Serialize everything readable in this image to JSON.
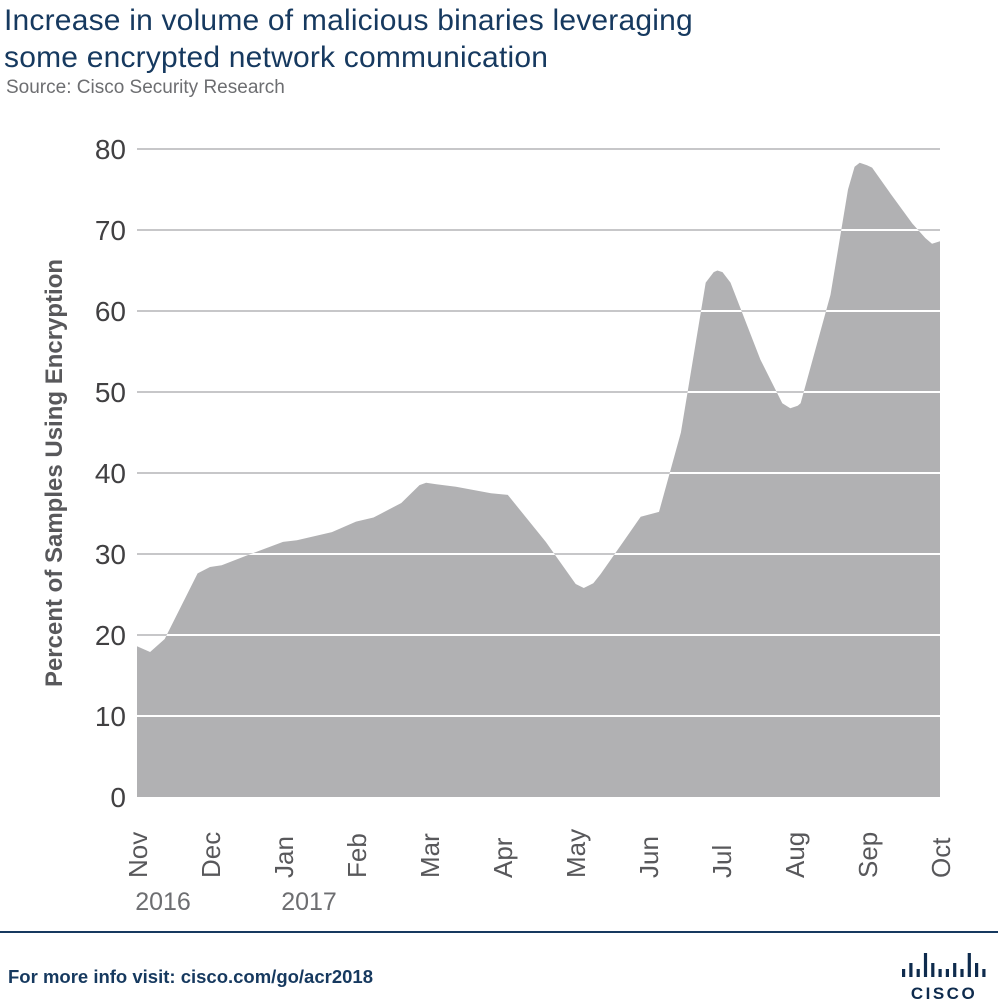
{
  "header": {
    "title_line1": "Increase in volume of malicious binaries leveraging",
    "title_line2": "some encrypted network communication",
    "source": "Source: Cisco Security Research"
  },
  "chart_data": {
    "type": "area",
    "title": "Increase in volume of malicious binaries leveraging some encrypted network communication",
    "series_name": "Percent of samples using encryption",
    "categories": [
      "Nov",
      "Dec",
      "Jan",
      "Feb",
      "Mar",
      "Apr",
      "May",
      "Jun",
      "Jul",
      "Aug",
      "Sep",
      "Oct"
    ],
    "year_markers": [
      {
        "label": "2016",
        "month_index": 0
      },
      {
        "label": "2017",
        "month_index": 2
      }
    ],
    "values": [
      18.5,
      28.5,
      31.5,
      34.5,
      39,
      37.5,
      26,
      35,
      65,
      48,
      78,
      68.5
    ],
    "detail_points": [
      [
        0.0,
        18.6
      ],
      [
        0.18,
        17.9
      ],
      [
        0.38,
        19.5
      ],
      [
        0.83,
        27.6
      ],
      [
        1.0,
        28.4
      ],
      [
        1.16,
        28.6
      ],
      [
        1.53,
        29.9
      ],
      [
        2.0,
        31.5
      ],
      [
        2.19,
        31.7
      ],
      [
        2.67,
        32.7
      ],
      [
        3.0,
        34.0
      ],
      [
        3.24,
        34.5
      ],
      [
        3.62,
        36.3
      ],
      [
        3.87,
        38.5
      ],
      [
        3.96,
        38.8
      ],
      [
        4.1,
        38.6
      ],
      [
        4.37,
        38.3
      ],
      [
        4.85,
        37.5
      ],
      [
        5.08,
        37.3
      ],
      [
        5.6,
        31.5
      ],
      [
        6.01,
        26.3
      ],
      [
        6.12,
        25.8
      ],
      [
        6.25,
        26.4
      ],
      [
        6.35,
        27.5
      ],
      [
        6.66,
        31.5
      ],
      [
        6.9,
        34.6
      ],
      [
        7.15,
        35.2
      ],
      [
        7.45,
        45.0
      ],
      [
        7.79,
        63.5
      ],
      [
        7.9,
        64.8
      ],
      [
        7.95,
        65.0
      ],
      [
        8.02,
        64.8
      ],
      [
        8.13,
        63.5
      ],
      [
        8.54,
        54.0
      ],
      [
        8.84,
        48.6
      ],
      [
        8.95,
        48.0
      ],
      [
        9.05,
        48.3
      ],
      [
        9.09,
        48.6
      ],
      [
        9.5,
        62.0
      ],
      [
        9.74,
        75.0
      ],
      [
        9.83,
        77.8
      ],
      [
        9.9,
        78.3
      ],
      [
        10.0,
        78.0
      ],
      [
        10.07,
        77.7
      ],
      [
        10.32,
        74.5
      ],
      [
        10.62,
        70.8
      ],
      [
        10.8,
        69.0
      ],
      [
        10.89,
        68.3
      ],
      [
        11.0,
        68.6
      ]
    ],
    "xlabel": "",
    "ylabel": "Percent of Samples Using Encryption",
    "ylim": [
      0,
      80
    ],
    "yticks": [
      0,
      10,
      20,
      30,
      40,
      50,
      60,
      70,
      80
    ],
    "grid": "horizontal",
    "legend": "none"
  },
  "footer": {
    "prefix": "For more info visit:",
    "link": "cisco.com/go/acr2018",
    "brand": "CISCO"
  },
  "colors": {
    "title_navy": "#16395f",
    "source_gray": "#6d6e71",
    "area_fill": "#b1b1b3",
    "gridline": "#c7c7c9",
    "gridline_over_area": "#ffffff",
    "ytick_label": "#414042",
    "month_label": "#58585b",
    "year_label": "#6d6e71",
    "axis_title": "#58585b",
    "footer_navy": "#16395f",
    "logo_navy": "#0e2b4d"
  }
}
